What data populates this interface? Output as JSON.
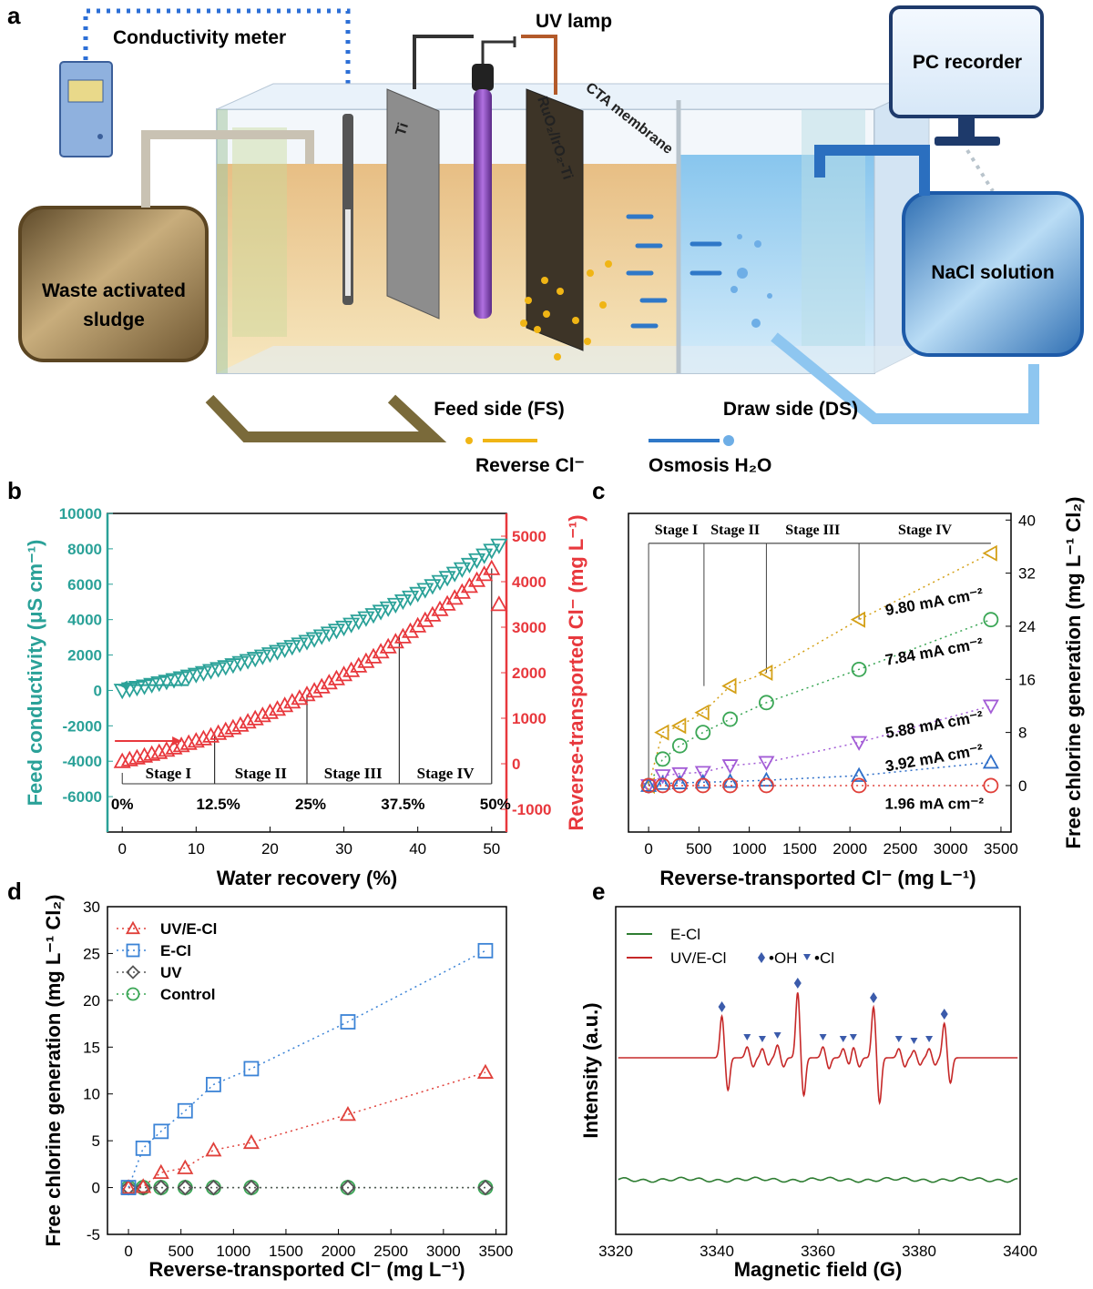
{
  "panel_labels": {
    "a": "a",
    "b": "b",
    "c": "c",
    "d": "d",
    "e": "e"
  },
  "schematic": {
    "conductivity_meter": "Conductivity meter",
    "uv_lamp": "UV lamp",
    "pc_recorder": "PC recorder",
    "cta_membrane": "CTA membrane",
    "waste_sludge_line1": "Waste activated",
    "waste_sludge_line2": "sludge",
    "nacl_solution": "NaCl solution",
    "ti_label": "Ti",
    "anode_label": "RuO₂/IrO₂-Ti",
    "feed_side": "Feed side (FS)",
    "draw_side": "Draw side (DS)",
    "legend_reverse": "Reverse Cl⁻",
    "legend_osmosis": "Osmosis H₂O",
    "colors": {
      "sludge": "#8c7046",
      "nacl": "#5b9bd5",
      "tank_feed": "#e8c98a",
      "tank_draw": "#a9d4f0",
      "uv": "#7a3fa8"
    }
  },
  "chart_data": [
    {
      "panel": "b",
      "type": "scatter",
      "xlabel": "Water recovery (%)",
      "ylabel_left": "Feed conductivity (μS cm⁻¹)",
      "ylabel_right": "Reverse-transported Cl⁻ (mg L⁻¹)",
      "xlim": [
        -2,
        52
      ],
      "ylim_left": [
        -8000,
        10000
      ],
      "ylim_right": [
        -1500,
        5500
      ],
      "xticks": [
        0,
        10,
        20,
        30,
        40,
        50
      ],
      "yticks_left": [
        -6000,
        -4000,
        -2000,
        0,
        2000,
        4000,
        6000,
        8000,
        10000
      ],
      "yticks_right": [
        -1000,
        0,
        1000,
        2000,
        3000,
        4000,
        5000
      ],
      "colors": {
        "left": "#2aa198",
        "right": "#e8383d"
      },
      "conductivity_series": {
        "marker": "triangle-down",
        "x": [
          0,
          1,
          2,
          3,
          4,
          5,
          6,
          7,
          8,
          9,
          10,
          11,
          12,
          13,
          14,
          15,
          16,
          17,
          18,
          19,
          20,
          21,
          22,
          23,
          24,
          25,
          26,
          27,
          28,
          29,
          30,
          31,
          32,
          33,
          34,
          35,
          36,
          37,
          38,
          39,
          40,
          41,
          42,
          43,
          44,
          45,
          46,
          47,
          48,
          49,
          50,
          51
        ],
        "y": [
          0,
          80,
          160,
          240,
          330,
          420,
          510,
          600,
          700,
          800,
          900,
          1000,
          1110,
          1220,
          1330,
          1440,
          1560,
          1680,
          1800,
          1930,
          2060,
          2190,
          2330,
          2470,
          2610,
          2760,
          2910,
          3070,
          3230,
          3390,
          3560,
          3730,
          3910,
          4090,
          4270,
          4460,
          4650,
          4850,
          5050,
          5260,
          5470,
          5690,
          5910,
          6140,
          6370,
          6610,
          6860,
          7110,
          7370,
          7640,
          7910,
          8200
        ]
      },
      "chloride_series": {
        "marker": "triangle-up",
        "x": [
          0,
          1,
          2,
          3,
          4,
          5,
          6,
          7,
          8,
          9,
          10,
          11,
          12,
          13,
          14,
          15,
          16,
          17,
          18,
          19,
          20,
          21,
          22,
          23,
          24,
          25,
          26,
          27,
          28,
          29,
          30,
          31,
          32,
          33,
          34,
          35,
          36,
          37,
          38,
          39,
          40,
          41,
          42,
          43,
          44,
          45,
          46,
          47,
          48,
          49,
          50,
          51
        ],
        "y": [
          50,
          90,
          130,
          170,
          210,
          250,
          300,
          350,
          400,
          450,
          500,
          550,
          610,
          670,
          730,
          790,
          850,
          920,
          990,
          1060,
          1130,
          1200,
          1280,
          1360,
          1440,
          1520,
          1600,
          1690,
          1780,
          1870,
          1960,
          2050,
          2150,
          2250,
          2350,
          2460,
          2570,
          2680,
          2790,
          2910,
          3030,
          3150,
          3270,
          3390,
          3510,
          3640,
          3770,
          3900,
          4030,
          4160,
          4290,
          3500
        ]
      },
      "stage_lines_x": [
        12.5,
        25,
        37.5,
        50
      ],
      "stages": [
        "Stage I",
        "Stage II",
        "Stage III",
        "Stage IV"
      ],
      "stage_ticks": [
        "0%",
        "12.5%",
        "25%",
        "37.5%",
        "50%"
      ]
    },
    {
      "panel": "c",
      "type": "scatter",
      "xlabel": "Reverse-transported Cl⁻  (mg L⁻¹)",
      "ylabel": "Free chlorine generation (mg L⁻¹ Cl₂)",
      "xlim": [
        -200,
        3600
      ],
      "ylim": [
        -7,
        41
      ],
      "xticks": [
        0,
        500,
        1000,
        1500,
        2000,
        2500,
        3000,
        3500
      ],
      "yticks": [
        0,
        8,
        16,
        24,
        32,
        40
      ],
      "stage_lines_x": [
        0,
        550,
        1170,
        2090
      ],
      "stages": [
        "Stage I",
        "Stage II",
        "Stage III",
        "Stage IV"
      ],
      "x": [
        0,
        140,
        310,
        540,
        810,
        1170,
        2090,
        3400
      ],
      "series": [
        {
          "name": "9.80 mA cm⁻²",
          "color": "#d4a017",
          "marker": "triangle-left",
          "y": [
            0,
            8,
            9,
            11,
            15,
            17,
            25,
            35
          ]
        },
        {
          "name": "7.84 mA cm⁻²",
          "color": "#3aa655",
          "marker": "circle",
          "y": [
            0,
            4,
            6,
            8,
            10,
            12.5,
            17.5,
            25
          ]
        },
        {
          "name": "5.88 mA cm⁻²",
          "color": "#a35cd6",
          "marker": "triangle-down",
          "y": [
            0,
            1.5,
            1.8,
            2,
            3,
            3.5,
            6.5,
            12
          ]
        },
        {
          "name": "3.92 mA cm⁻²",
          "color": "#2f6fc9",
          "marker": "triangle-up",
          "y": [
            0,
            0.3,
            0.4,
            0.5,
            0.6,
            0.8,
            1.5,
            3.5
          ]
        },
        {
          "name": "1.96 mA cm⁻²",
          "color": "#e0403a",
          "marker": "circle",
          "y": [
            0,
            0,
            0,
            0,
            0,
            0,
            0,
            0
          ]
        }
      ]
    },
    {
      "panel": "d",
      "type": "scatter",
      "xlabel": "Reverse-transported Cl⁻ (mg L⁻¹)",
      "ylabel": "Free chlorine generation (mg L⁻¹ Cl₂)",
      "xlim": [
        -200,
        3600
      ],
      "ylim": [
        -5,
        30
      ],
      "xticks": [
        0,
        500,
        1000,
        1500,
        2000,
        2500,
        3000,
        3500
      ],
      "yticks": [
        -5,
        0,
        5,
        10,
        15,
        20,
        25,
        30
      ],
      "x": [
        0,
        140,
        310,
        540,
        810,
        1170,
        2090,
        3400
      ],
      "series": [
        {
          "name": "UV/E-Cl",
          "color": "#e0403a",
          "marker": "triangle-up",
          "y": [
            0,
            0.1,
            1.6,
            2.1,
            4,
            4.8,
            7.8,
            12.3
          ]
        },
        {
          "name": "E-Cl",
          "color": "#3b83d6",
          "marker": "square",
          "y": [
            0,
            4.2,
            6,
            8.2,
            11,
            12.7,
            17.7,
            25.3
          ]
        },
        {
          "name": "UV",
          "color": "#555555",
          "marker": "diamond",
          "y": [
            0,
            0,
            0,
            0,
            0,
            0,
            0,
            0
          ]
        },
        {
          "name": "Control",
          "color": "#3aa655",
          "marker": "circle",
          "y": [
            0,
            0,
            0,
            0,
            0,
            0,
            0,
            0
          ]
        }
      ]
    },
    {
      "panel": "e",
      "type": "line",
      "xlabel": "Magnetic field (G)",
      "ylabel": "Intensity (a.u.)",
      "xlim": [
        3320,
        3400
      ],
      "xticks": [
        3320,
        3340,
        3360,
        3380,
        3400
      ],
      "series": [
        {
          "name": "E-Cl",
          "color": "#2e7d32"
        },
        {
          "name": "UV/E-Cl",
          "color": "#c62828"
        }
      ],
      "markers": [
        {
          "name": "•OH",
          "color": "#3b5bab"
        },
        {
          "name": "•Cl",
          "color": "#3b5bab"
        }
      ]
    }
  ]
}
